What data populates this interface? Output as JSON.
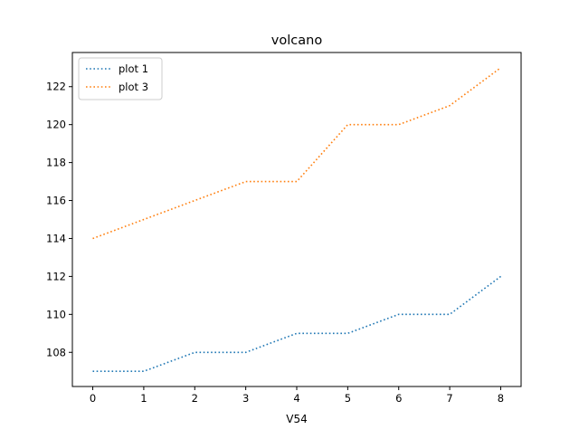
{
  "chart_data": {
    "type": "line",
    "title": "volcano",
    "xlabel": "V54",
    "ylabel": "",
    "x": [
      0,
      1,
      2,
      3,
      4,
      5,
      6,
      7,
      8
    ],
    "series": [
      {
        "name": "plot 1",
        "color": "#1f77b4",
        "values": [
          107,
          107,
          108,
          108,
          109,
          109,
          110,
          110,
          112
        ]
      },
      {
        "name": "plot 3",
        "color": "#ff7f0e",
        "values": [
          114,
          115,
          116,
          117,
          117,
          120,
          120,
          121,
          123
        ]
      }
    ],
    "xticks": [
      "0",
      "1",
      "2",
      "3",
      "4",
      "5",
      "6",
      "7",
      "8"
    ],
    "yticks": [
      "108",
      "110",
      "112",
      "114",
      "116",
      "118",
      "120",
      "122"
    ],
    "xlim": [
      -0.4,
      8.4
    ],
    "ylim": [
      106.2,
      123.8
    ],
    "line_style": "dotted",
    "grid": false,
    "legend_position": "top-left"
  }
}
